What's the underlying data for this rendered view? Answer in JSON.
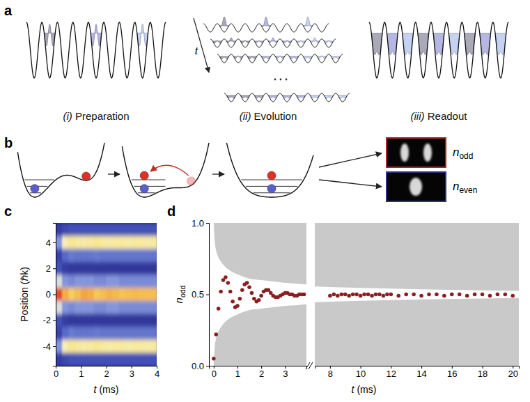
{
  "figure": {
    "a": {
      "panel_label": "a",
      "stages": [
        "(i) Preparation",
        "(ii) Evolution",
        "(iii) Readout"
      ],
      "time_label": "t"
    },
    "b": {
      "panel_label": "b",
      "outputs": [
        {
          "main": "n",
          "sub": "odd"
        },
        {
          "main": "n",
          "sub": "even"
        }
      ]
    }
  },
  "chart_data": [
    {
      "type": "heatmap",
      "panel_label": "c",
      "x_label": "t (ms)",
      "y_label": "Position (ℏk)",
      "x": [
        0.125,
        0.375,
        0.625,
        0.875,
        1.125,
        1.375,
        1.625,
        1.875,
        2.125,
        2.375,
        2.625,
        2.875,
        3.125,
        3.375,
        3.625,
        3.875
      ],
      "y": [
        5,
        4,
        3,
        2,
        1,
        0,
        -1,
        -2,
        -3,
        -4,
        -5
      ],
      "z": [
        [
          0.08,
          0.12,
          0.15,
          0.15,
          0.15,
          0.15,
          0.15,
          0.15,
          0.15,
          0.15,
          0.15,
          0.15,
          0.15,
          0.15,
          0.15,
          0.15
        ],
        [
          0.3,
          0.55,
          0.6,
          0.58,
          0.57,
          0.58,
          0.6,
          0.58,
          0.57,
          0.58,
          0.58,
          0.57,
          0.58,
          0.58,
          0.57,
          0.58
        ],
        [
          0.1,
          0.22,
          0.25,
          0.24,
          0.24,
          0.24,
          0.25,
          0.24,
          0.24,
          0.24,
          0.24,
          0.24,
          0.24,
          0.24,
          0.24,
          0.24
        ],
        [
          0.15,
          0.08,
          0.06,
          0.06,
          0.06,
          0.06,
          0.06,
          0.06,
          0.06,
          0.06,
          0.06,
          0.06,
          0.06,
          0.06,
          0.06,
          0.06
        ],
        [
          0.45,
          0.3,
          0.28,
          0.3,
          0.3,
          0.3,
          0.28,
          0.28,
          0.3,
          0.3,
          0.28,
          0.28,
          0.28,
          0.28,
          0.28,
          0.28
        ],
        [
          0.95,
          0.78,
          0.7,
          0.74,
          0.8,
          0.78,
          0.72,
          0.74,
          0.77,
          0.75,
          0.73,
          0.74,
          0.75,
          0.74,
          0.74,
          0.74
        ],
        [
          0.45,
          0.3,
          0.28,
          0.3,
          0.3,
          0.3,
          0.28,
          0.28,
          0.3,
          0.3,
          0.28,
          0.28,
          0.28,
          0.28,
          0.28,
          0.28
        ],
        [
          0.15,
          0.08,
          0.06,
          0.06,
          0.06,
          0.06,
          0.06,
          0.06,
          0.06,
          0.06,
          0.06,
          0.06,
          0.06,
          0.06,
          0.06,
          0.06
        ],
        [
          0.1,
          0.22,
          0.25,
          0.24,
          0.24,
          0.24,
          0.25,
          0.24,
          0.24,
          0.24,
          0.24,
          0.24,
          0.24,
          0.24,
          0.24,
          0.24
        ],
        [
          0.3,
          0.55,
          0.6,
          0.58,
          0.57,
          0.58,
          0.6,
          0.58,
          0.57,
          0.58,
          0.58,
          0.57,
          0.58,
          0.58,
          0.57,
          0.58
        ],
        [
          0.08,
          0.12,
          0.15,
          0.15,
          0.15,
          0.15,
          0.15,
          0.15,
          0.15,
          0.15,
          0.15,
          0.15,
          0.15,
          0.15,
          0.15,
          0.15
        ]
      ],
      "zlim": [
        0,
        1
      ],
      "xlim": [
        0,
        4
      ],
      "xticks": [
        0,
        1,
        2,
        3,
        4
      ],
      "ylim": [
        -5.5,
        5.5
      ],
      "yticks": [
        -4,
        -2,
        0,
        2,
        4
      ]
    },
    {
      "type": "scatter",
      "panel_label": "d",
      "x_label": "t (ms)",
      "y_label": {
        "main": "n",
        "sub": "odd"
      },
      "color": "#8b1e1e",
      "marker": "circle",
      "x": [
        0,
        0.1,
        0.2,
        0.3,
        0.4,
        0.5,
        0.6,
        0.7,
        0.8,
        0.9,
        1,
        1.1,
        1.2,
        1.3,
        1.4,
        1.5,
        1.6,
        1.7,
        1.8,
        1.9,
        2,
        2.1,
        2.2,
        2.3,
        2.4,
        2.5,
        2.6,
        2.7,
        2.8,
        2.9,
        3,
        3.1,
        3.2,
        3.3,
        3.4,
        3.5,
        3.6,
        3.7,
        3.8,
        8,
        8.25,
        8.5,
        8.75,
        9,
        9.25,
        9.5,
        9.75,
        10,
        10.25,
        10.5,
        10.75,
        11,
        11.25,
        11.5,
        11.75,
        12,
        12.5,
        13,
        13.5,
        14,
        14.5,
        15,
        15.5,
        16,
        16.5,
        17,
        17.5,
        18,
        18.5,
        19,
        19.5,
        20
      ],
      "values": [
        0.05,
        0.22,
        0.4,
        0.52,
        0.6,
        0.62,
        0.58,
        0.52,
        0.45,
        0.41,
        0.42,
        0.47,
        0.53,
        0.57,
        0.58,
        0.55,
        0.51,
        0.47,
        0.45,
        0.46,
        0.49,
        0.52,
        0.53,
        0.53,
        0.51,
        0.49,
        0.48,
        0.48,
        0.49,
        0.5,
        0.51,
        0.51,
        0.5,
        0.5,
        0.49,
        0.49,
        0.5,
        0.5,
        0.5,
        0.49,
        0.5,
        0.49,
        0.5,
        0.5,
        0.49,
        0.5,
        0.5,
        0.49,
        0.5,
        0.5,
        0.49,
        0.5,
        0.5,
        0.49,
        0.5,
        0.5,
        0.49,
        0.5,
        0.5,
        0.49,
        0.5,
        0.5,
        0.49,
        0.5,
        0.5,
        0.49,
        0.5,
        0.5,
        0.49,
        0.5,
        0.5,
        0.49
      ],
      "envelope": {
        "x": [
          0,
          0.05,
          0.1,
          0.2,
          0.3,
          0.5,
          0.75,
          1,
          1.5,
          2,
          2.5,
          3,
          3.5,
          3.9,
          7,
          10,
          14,
          20.4
        ],
        "upper": [
          1,
          0.86,
          0.81,
          0.76,
          0.73,
          0.69,
          0.66,
          0.64,
          0.61,
          0.6,
          0.59,
          0.58,
          0.575,
          0.57,
          0.555,
          0.545,
          0.535,
          0.525
        ],
        "lower": [
          0,
          0.14,
          0.19,
          0.24,
          0.27,
          0.31,
          0.34,
          0.36,
          0.39,
          0.4,
          0.41,
          0.42,
          0.425,
          0.43,
          0.445,
          0.455,
          0.465,
          0.475
        ]
      },
      "xlim": [
        [
          -0.2,
          3.9
        ],
        [
          7,
          20.4
        ]
      ],
      "xticks": [
        [
          0,
          1,
          2,
          3
        ],
        [
          8,
          10,
          12,
          14,
          16,
          18,
          20
        ]
      ],
      "ylim": [
        0,
        1
      ],
      "yticks": [
        {
          "value": 0,
          "label": "0.0"
        },
        {
          "value": 0.5,
          "label": "0.5"
        },
        {
          "value": 1,
          "label": "1.0"
        }
      ]
    }
  ]
}
